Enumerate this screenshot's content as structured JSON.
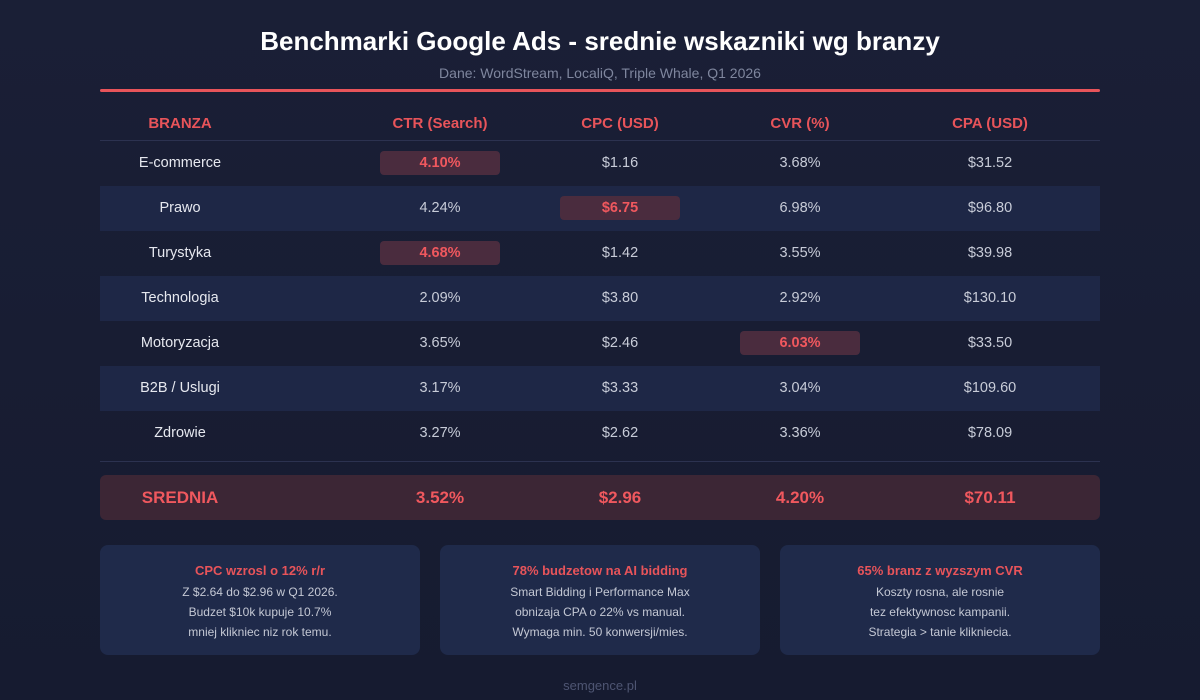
{
  "title": "Benchmarki Google Ads - srednie wskazniki wg branzy",
  "subtitle": "Dane: WordStream, LocaliQ, Triple Whale, Q1 2026",
  "colors": {
    "accent": "#e8545a",
    "highlight_bg": "#4a2c3e",
    "alt_row_bg": "#1e2746"
  },
  "table": {
    "headers": [
      "BRANZA",
      "CTR (Search)",
      "CPC (USD)",
      "CVR (%)",
      "CPA (USD)"
    ],
    "rows": [
      {
        "name": "E-commerce",
        "ctr": "4.10%",
        "cpc": "$1.16",
        "cvr": "3.68%",
        "cpa": "$31.52"
      },
      {
        "name": "Prawo",
        "ctr": "4.24%",
        "cpc": "$6.75",
        "cvr": "6.98%",
        "cpa": "$96.80"
      },
      {
        "name": "Turystyka",
        "ctr": "4.68%",
        "cpc": "$1.42",
        "cvr": "3.55%",
        "cpa": "$39.98"
      },
      {
        "name": "Technologia",
        "ctr": "2.09%",
        "cpc": "$3.80",
        "cvr": "2.92%",
        "cpa": "$130.10"
      },
      {
        "name": "Motoryzacja",
        "ctr": "3.65%",
        "cpc": "$2.46",
        "cvr": "6.03%",
        "cpa": "$33.50"
      },
      {
        "name": "B2B / Uslugi",
        "ctr": "3.17%",
        "cpc": "$3.33",
        "cvr": "3.04%",
        "cpa": "$109.60"
      },
      {
        "name": "Zdrowie",
        "ctr": "3.27%",
        "cpc": "$2.62",
        "cvr": "3.36%",
        "cpa": "$78.09"
      }
    ],
    "average": {
      "name": "SREDNIA",
      "ctr": "3.52%",
      "cpc": "$2.96",
      "cvr": "4.20%",
      "cpa": "$70.11"
    }
  },
  "cards": [
    {
      "title": "CPC wzrosl o 12% r/r",
      "lines": [
        "Z $2.64 do $2.96 w Q1 2026.",
        "Budzet $10k kupuje 10.7%",
        "mniej klikniec niz rok temu."
      ]
    },
    {
      "title": "78% budzetow na AI bidding",
      "lines": [
        "Smart Bidding i Performance Max",
        "obnizaja CPA o 22% vs manual.",
        "Wymaga min. 50 konwersji/mies."
      ]
    },
    {
      "title": "65% branz z wyzszym CVR",
      "lines": [
        "Koszty rosna, ale rosnie",
        "tez efektywnosc kampanii.",
        "Strategia > tanie klikniecia."
      ]
    }
  ],
  "footer": "semgence.pl"
}
